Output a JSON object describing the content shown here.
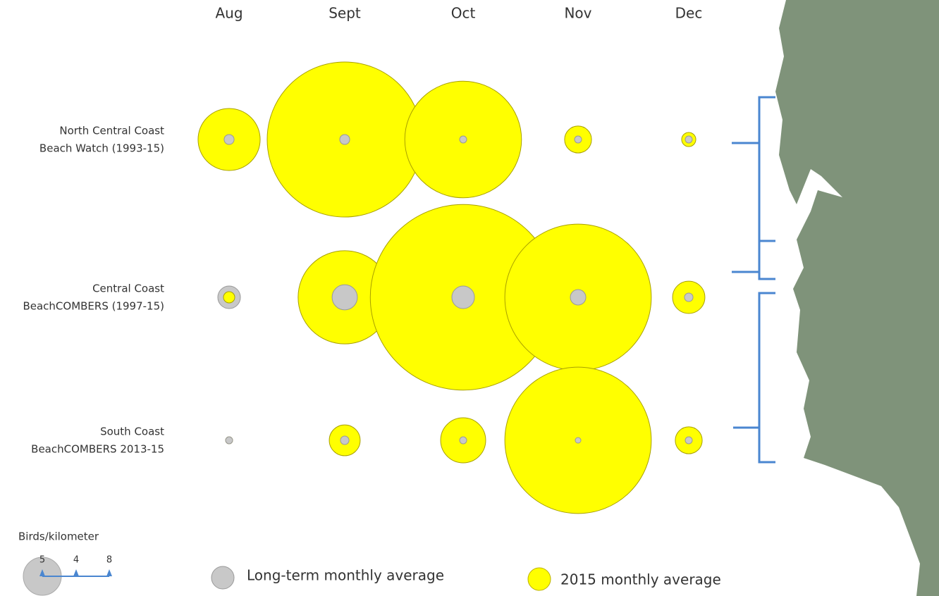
{
  "chart_data": {
    "type": "bubble",
    "categories": [
      "Aug",
      "Sept",
      "Oct",
      "Nov",
      "Dec"
    ],
    "rows": [
      [
        "North Central Coast",
        "Beach Watch (1993-15)"
      ],
      [
        "Central Coast",
        "BeachCOMBERS (1997-15)"
      ],
      [
        "South Coast",
        "BeachCOMBERS 2013-15"
      ]
    ],
    "series": [
      {
        "name": "2015 monthly average",
        "color": "#ffff00",
        "values": [
          [
            13.3,
            83,
            47,
            2.5,
            0.69
          ],
          [
            0.44,
            30,
            119,
            74,
            3.6
          ],
          [
            0.17,
            3.3,
            7,
            74,
            2.5
          ]
        ]
      },
      {
        "name": "Long-term monthly average",
        "color": "#c8c8c8",
        "values": [
          [
            0.34,
            0.34,
            0.17,
            0.17,
            0.17
          ],
          [
            1.76,
            2.2,
            1.76,
            0.83,
            0.25
          ],
          [
            0.17,
            0.25,
            0.17,
            0.11,
            0.17
          ]
        ]
      }
    ],
    "size_title": "Birds/kilometer",
    "size_ticks": [
      5,
      4,
      8
    ]
  }
}
